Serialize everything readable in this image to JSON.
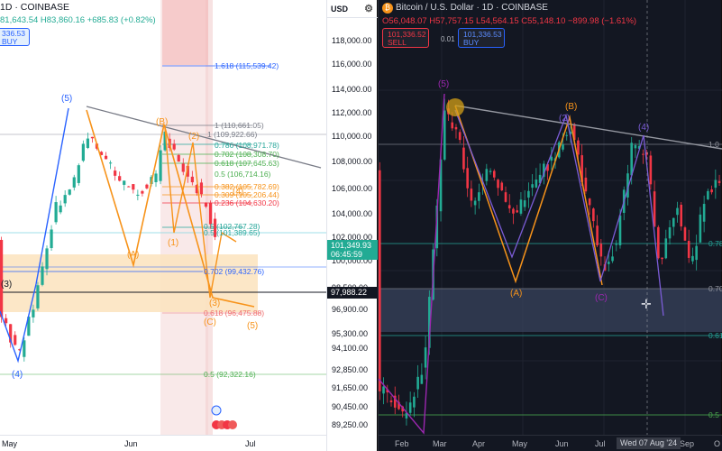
{
  "left_chart": {
    "symbol": "1D · COINBASE",
    "ohlc": "81,643.54  H83,860.16  +685.83 (+0.82%)",
    "buy_price": "336.53",
    "buy_label": "BUY",
    "x_labels": [
      "May",
      "Jun",
      "Jul"
    ],
    "wave_labels": [
      "(5)",
      "(3)",
      "(4)",
      "(B)",
      "(A)",
      "(1)",
      "(2)",
      "(4)",
      "(3)",
      "(5)",
      "(C)"
    ],
    "fib_levels": [
      "1.618 (115,539.42)",
      "1 (110,661.05)",
      "1 (109,922.66)",
      "0.786 (108,971.78)",
      "0.702 (108,308.70)",
      "0.618 (107,645.63)",
      "0.5 (106,714.16)",
      "0.382 (105,782.69)",
      "0.309 (105,206.44)",
      "0.236 (104,630.20)",
      "0.5 (102,767.28)",
      "0.5 (101,389.65)",
      "0.702 (99,432.76)",
      "0.618 (96,475.88)",
      "0.5 (92,322.16)"
    ]
  },
  "price_axis": {
    "currency": "USD",
    "ticks": [
      "118,000.00",
      "116,000.00",
      "114,000.00",
      "112,000.00",
      "110,000.00",
      "108,000.00",
      "106,000.00",
      "104,000.00",
      "102,000.00",
      "100,000.00",
      "98,500.00",
      "96,900.00",
      "95,300.00",
      "94,100.00",
      "92,850.00",
      "91,650.00",
      "90,450.00",
      "89,250.00"
    ],
    "current_price": "101,349.93",
    "countdown": "06:45:59",
    "line_price": "97,988.22"
  },
  "right_chart": {
    "title": "Bitcoin / U.S. Dollar · 1D · COINBASE",
    "ohlc": "O56,048.07  H57,757.15  L54,564.15  C55,148.10  −899.98 (−1.61%)",
    "sell_price": "101,336.52",
    "sell_label": "SELL",
    "spread": "0.01",
    "buy_price": "101,336.53",
    "buy_label": "BUY",
    "x_labels": [
      "Feb",
      "Mar",
      "Apr",
      "May",
      "Jun",
      "Jul",
      "Sep",
      "O"
    ],
    "crosshair_date": "Wed 07 Aug '24",
    "wave_labels": [
      "(5)",
      "(A)",
      "(B)",
      "(C)",
      "(2)",
      "(4)"
    ],
    "fib_right_labels": [
      "1.0",
      "0.78",
      "0.70",
      "0.61",
      "0.5"
    ]
  },
  "colors": {
    "bull": "#22ab94",
    "bear": "#f23645",
    "wave_orange": "#f7931a",
    "wave_blue": "#2962ff",
    "wave_purple": "#9c27b0",
    "trend_gray": "#787b86"
  }
}
